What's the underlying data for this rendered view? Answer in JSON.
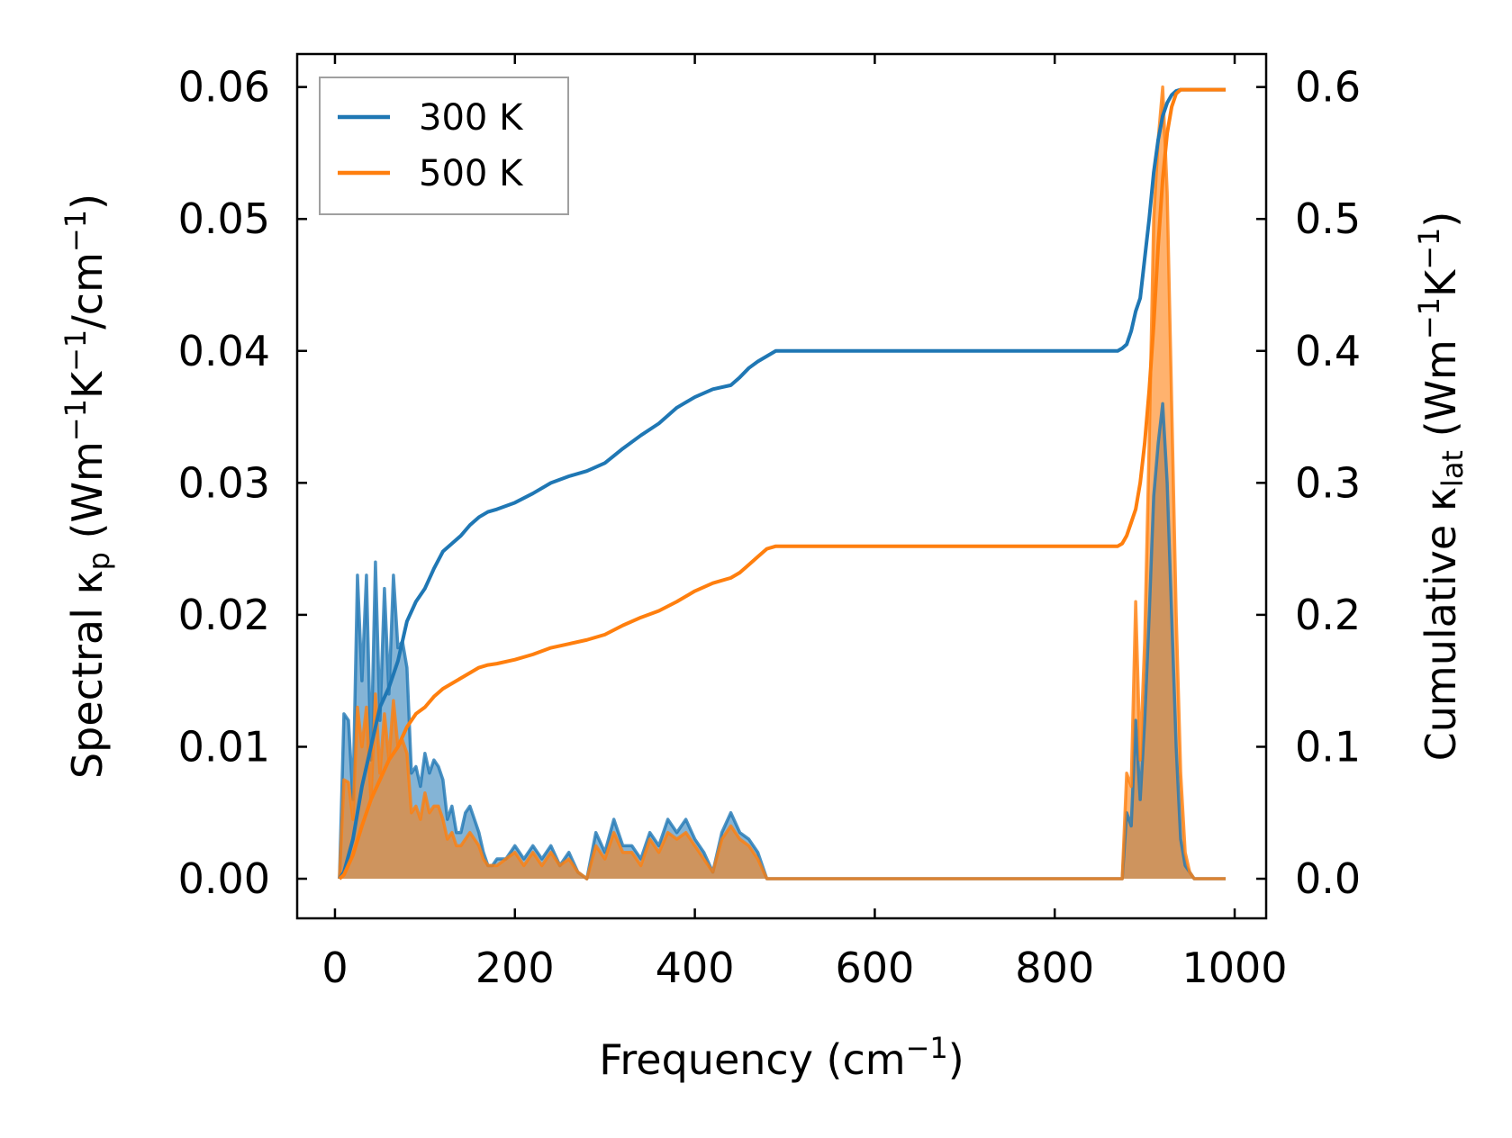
{
  "chart_data": {
    "type": "line",
    "title": "",
    "xlabel": {
      "base": "Frequency (cm",
      "sup": "−1",
      "tail": ")"
    },
    "ylabel_left": {
      "parts": [
        {
          "t": "Spectral κ",
          "k": "n"
        },
        {
          "t": "p",
          "k": "sub"
        },
        {
          "t": " (Wm",
          "k": "n"
        },
        {
          "t": "−1",
          "k": "sup"
        },
        {
          "t": "K",
          "k": "n"
        },
        {
          "t": "−1",
          "k": "sup"
        },
        {
          "t": "/cm",
          "k": "n"
        },
        {
          "t": "−1",
          "k": "sup"
        },
        {
          "t": ")",
          "k": "n"
        }
      ]
    },
    "ylabel_right": {
      "parts": [
        {
          "t": "Cumulative κ",
          "k": "n"
        },
        {
          "t": "lat",
          "k": "sub"
        },
        {
          "t": " (Wm",
          "k": "n"
        },
        {
          "t": "−1",
          "k": "sup"
        },
        {
          "t": "K",
          "k": "n"
        },
        {
          "t": "−1",
          "k": "sup"
        },
        {
          "t": ")",
          "k": "n"
        }
      ]
    },
    "xlim": [
      -42,
      1035
    ],
    "ylim_left": [
      -0.003,
      0.0625
    ],
    "ylim_right": [
      -0.03,
      0.625
    ],
    "x_ticks": [
      0,
      200,
      400,
      600,
      800,
      1000
    ],
    "y_left_ticks": [
      0.0,
      0.01,
      0.02,
      0.03,
      0.04,
      0.05,
      0.06
    ],
    "y_left_tick_labels": [
      "0.00",
      "0.01",
      "0.02",
      "0.03",
      "0.04",
      "0.05",
      "0.06"
    ],
    "y_right_ticks": [
      0.0,
      0.1,
      0.2,
      0.3,
      0.4,
      0.5,
      0.6
    ],
    "y_right_tick_labels": [
      "0.0",
      "0.1",
      "0.2",
      "0.3",
      "0.4",
      "0.5",
      "0.6"
    ],
    "legend": {
      "position": "top-left",
      "entries": [
        {
          "label": "300 K",
          "color": "#1f77b4"
        },
        {
          "label": "500 K",
          "color": "#ff7f0e"
        }
      ]
    },
    "series": [
      {
        "name": "300 K",
        "color": "#1f77b4",
        "spectral": {
          "x": [
            5,
            10,
            15,
            20,
            25,
            30,
            35,
            40,
            45,
            50,
            55,
            60,
            65,
            70,
            75,
            80,
            85,
            90,
            95,
            100,
            105,
            110,
            115,
            120,
            125,
            130,
            135,
            140,
            145,
            150,
            155,
            160,
            165,
            170,
            175,
            180,
            190,
            200,
            210,
            220,
            230,
            240,
            250,
            260,
            270,
            280,
            290,
            300,
            310,
            320,
            330,
            340,
            350,
            360,
            370,
            380,
            390,
            400,
            410,
            420,
            430,
            440,
            450,
            460,
            470,
            480,
            490,
            500,
            870,
            875,
            880,
            885,
            890,
            895,
            900,
            905,
            910,
            915,
            920,
            925,
            930,
            935,
            940,
            945,
            950,
            955,
            960,
            965,
            990
          ],
          "y": [
            0.0,
            0.0125,
            0.012,
            0.006,
            0.023,
            0.015,
            0.023,
            0.009,
            0.024,
            0.012,
            0.022,
            0.014,
            0.023,
            0.0175,
            0.018,
            0.016,
            0.008,
            0.0085,
            0.007,
            0.0095,
            0.008,
            0.009,
            0.0085,
            0.0075,
            0.0045,
            0.0055,
            0.0035,
            0.0035,
            0.005,
            0.0055,
            0.0045,
            0.0035,
            0.002,
            0.001,
            0.001,
            0.0015,
            0.0015,
            0.0025,
            0.0015,
            0.0025,
            0.0015,
            0.0025,
            0.001,
            0.002,
            0.0005,
            0.0,
            0.0035,
            0.002,
            0.0045,
            0.0025,
            0.0025,
            0.0015,
            0.0035,
            0.0025,
            0.0045,
            0.0035,
            0.0045,
            0.003,
            0.002,
            0.0005,
            0.0035,
            0.005,
            0.0035,
            0.003,
            0.002,
            0.0,
            0.0,
            0.0,
            0.0,
            0.0,
            0.005,
            0.004,
            0.012,
            0.006,
            0.012,
            0.02,
            0.029,
            0.033,
            0.036,
            0.03,
            0.02,
            0.01,
            0.003,
            0.001,
            0.0005,
            0.0,
            0.0,
            0.0,
            0.0
          ]
        },
        "cumulative": {
          "x": [
            5,
            10,
            20,
            30,
            40,
            50,
            60,
            70,
            80,
            90,
            100,
            110,
            120,
            130,
            140,
            150,
            160,
            170,
            180,
            200,
            220,
            240,
            260,
            280,
            300,
            320,
            340,
            360,
            380,
            400,
            420,
            440,
            450,
            460,
            470,
            480,
            490,
            500,
            870,
            875,
            880,
            885,
            890,
            895,
            900,
            905,
            910,
            915,
            920,
            925,
            930,
            935,
            940,
            945,
            950,
            955,
            960,
            965,
            990
          ],
          "y": [
            0.0,
            0.005,
            0.03,
            0.07,
            0.1,
            0.13,
            0.145,
            0.165,
            0.195,
            0.21,
            0.22,
            0.235,
            0.248,
            0.254,
            0.26,
            0.268,
            0.274,
            0.278,
            0.28,
            0.285,
            0.292,
            0.3,
            0.305,
            0.309,
            0.315,
            0.326,
            0.336,
            0.345,
            0.357,
            0.365,
            0.371,
            0.374,
            0.38,
            0.387,
            0.392,
            0.396,
            0.4,
            0.4,
            0.4,
            0.402,
            0.405,
            0.415,
            0.43,
            0.44,
            0.47,
            0.5,
            0.535,
            0.56,
            0.578,
            0.588,
            0.594,
            0.597,
            0.598,
            0.598,
            0.598,
            0.598,
            0.598,
            0.598,
            0.598
          ]
        }
      },
      {
        "name": "500 K",
        "color": "#ff7f0e",
        "spectral": {
          "x": [
            5,
            10,
            15,
            20,
            25,
            30,
            35,
            40,
            45,
            50,
            55,
            60,
            65,
            70,
            75,
            80,
            85,
            90,
            95,
            100,
            105,
            110,
            115,
            120,
            125,
            130,
            135,
            140,
            145,
            150,
            155,
            160,
            165,
            170,
            175,
            180,
            190,
            200,
            210,
            220,
            230,
            240,
            250,
            260,
            270,
            280,
            290,
            300,
            310,
            320,
            330,
            340,
            350,
            360,
            370,
            380,
            390,
            400,
            410,
            420,
            430,
            440,
            450,
            460,
            470,
            480,
            490,
            500,
            870,
            875,
            880,
            885,
            890,
            895,
            900,
            905,
            910,
            915,
            920,
            925,
            930,
            935,
            940,
            945,
            950,
            955,
            960,
            965,
            990
          ],
          "y": [
            0.0,
            0.0075,
            0.0073,
            0.0045,
            0.013,
            0.01,
            0.013,
            0.006,
            0.014,
            0.008,
            0.0125,
            0.009,
            0.0135,
            0.01,
            0.0105,
            0.0095,
            0.005,
            0.0055,
            0.0045,
            0.0065,
            0.005,
            0.0055,
            0.0055,
            0.0045,
            0.003,
            0.0035,
            0.0025,
            0.0025,
            0.003,
            0.0035,
            0.003,
            0.0025,
            0.0015,
            0.001,
            0.001,
            0.001,
            0.0015,
            0.002,
            0.001,
            0.002,
            0.001,
            0.002,
            0.001,
            0.0015,
            0.0005,
            0.0,
            0.0025,
            0.0015,
            0.0035,
            0.002,
            0.002,
            0.001,
            0.003,
            0.002,
            0.0035,
            0.003,
            0.0035,
            0.0025,
            0.0015,
            0.0005,
            0.003,
            0.004,
            0.003,
            0.0025,
            0.0015,
            0.0,
            0.0,
            0.0,
            0.0,
            0.0,
            0.008,
            0.007,
            0.021,
            0.009,
            0.018,
            0.033,
            0.05,
            0.056,
            0.06,
            0.052,
            0.036,
            0.02,
            0.008,
            0.002,
            0.0005,
            0.0,
            0.0,
            0.0,
            0.0
          ]
        },
        "cumulative": {
          "x": [
            5,
            10,
            20,
            30,
            40,
            50,
            60,
            70,
            80,
            90,
            100,
            110,
            120,
            130,
            140,
            150,
            160,
            170,
            180,
            200,
            220,
            240,
            260,
            280,
            300,
            320,
            340,
            360,
            380,
            400,
            420,
            440,
            450,
            460,
            470,
            480,
            490,
            500,
            870,
            875,
            880,
            885,
            890,
            895,
            900,
            905,
            910,
            915,
            920,
            925,
            930,
            935,
            940,
            945,
            950,
            955,
            960,
            965,
            990
          ],
          "y": [
            0.0,
            0.003,
            0.018,
            0.04,
            0.06,
            0.075,
            0.09,
            0.1,
            0.115,
            0.125,
            0.13,
            0.138,
            0.144,
            0.148,
            0.152,
            0.156,
            0.16,
            0.162,
            0.163,
            0.166,
            0.17,
            0.175,
            0.178,
            0.181,
            0.185,
            0.192,
            0.198,
            0.203,
            0.21,
            0.218,
            0.224,
            0.228,
            0.232,
            0.238,
            0.244,
            0.25,
            0.252,
            0.252,
            0.252,
            0.254,
            0.26,
            0.27,
            0.28,
            0.3,
            0.33,
            0.37,
            0.42,
            0.48,
            0.53,
            0.565,
            0.585,
            0.595,
            0.598,
            0.598,
            0.598,
            0.598,
            0.598,
            0.598,
            0.598
          ]
        }
      }
    ]
  }
}
